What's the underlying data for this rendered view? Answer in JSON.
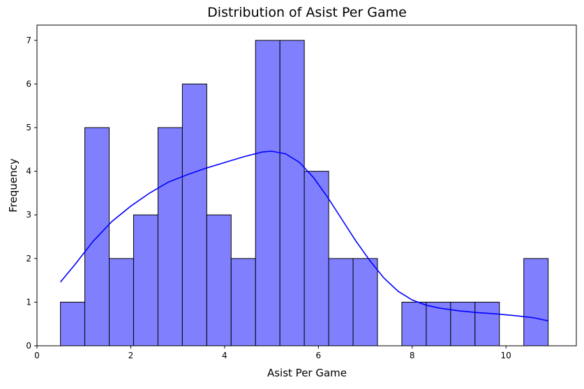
{
  "chart_data": {
    "type": "bar",
    "title": "Distribution of Asist Per Game",
    "xlabel": "Asist Per Game",
    "ylabel": "Frequency",
    "xlim": [
      0,
      11.5
    ],
    "ylim": [
      0,
      7.35
    ],
    "x_ticks": [
      0,
      2,
      4,
      6,
      8,
      10
    ],
    "y_ticks": [
      0,
      1,
      2,
      3,
      4,
      5,
      6,
      7
    ],
    "grid": false,
    "legend": "none",
    "bin_edges": [
      0.5,
      1.02,
      1.54,
      2.06,
      2.58,
      3.1,
      3.62,
      4.14,
      4.66,
      5.18,
      5.7,
      6.22,
      6.74,
      7.26,
      7.78,
      8.3,
      8.82,
      9.34,
      9.86,
      10.38,
      10.9
    ],
    "values": [
      1,
      5,
      2,
      3,
      5,
      6,
      3,
      2,
      7,
      7,
      4,
      2,
      2,
      0,
      1,
      1,
      1,
      1,
      0,
      2
    ],
    "kde": {
      "x": [
        0.5,
        0.8,
        1.2,
        1.6,
        2.0,
        2.4,
        2.8,
        3.2,
        3.6,
        4.0,
        4.4,
        4.8,
        5.0,
        5.3,
        5.6,
        5.9,
        6.2,
        6.5,
        6.8,
        7.1,
        7.4,
        7.7,
        8.0,
        8.3,
        8.6,
        9.0,
        9.4,
        9.8,
        10.2,
        10.6,
        10.9
      ],
      "y": [
        1.46,
        1.85,
        2.4,
        2.85,
        3.2,
        3.5,
        3.75,
        3.92,
        4.07,
        4.2,
        4.33,
        4.44,
        4.46,
        4.4,
        4.2,
        3.85,
        3.4,
        2.9,
        2.4,
        1.95,
        1.55,
        1.25,
        1.05,
        0.93,
        0.86,
        0.8,
        0.76,
        0.73,
        0.69,
        0.64,
        0.57
      ]
    },
    "colors": {
      "bar_fill": "#8080ff",
      "bar_edge": "#000000",
      "kde_line": "#0000ff"
    }
  }
}
